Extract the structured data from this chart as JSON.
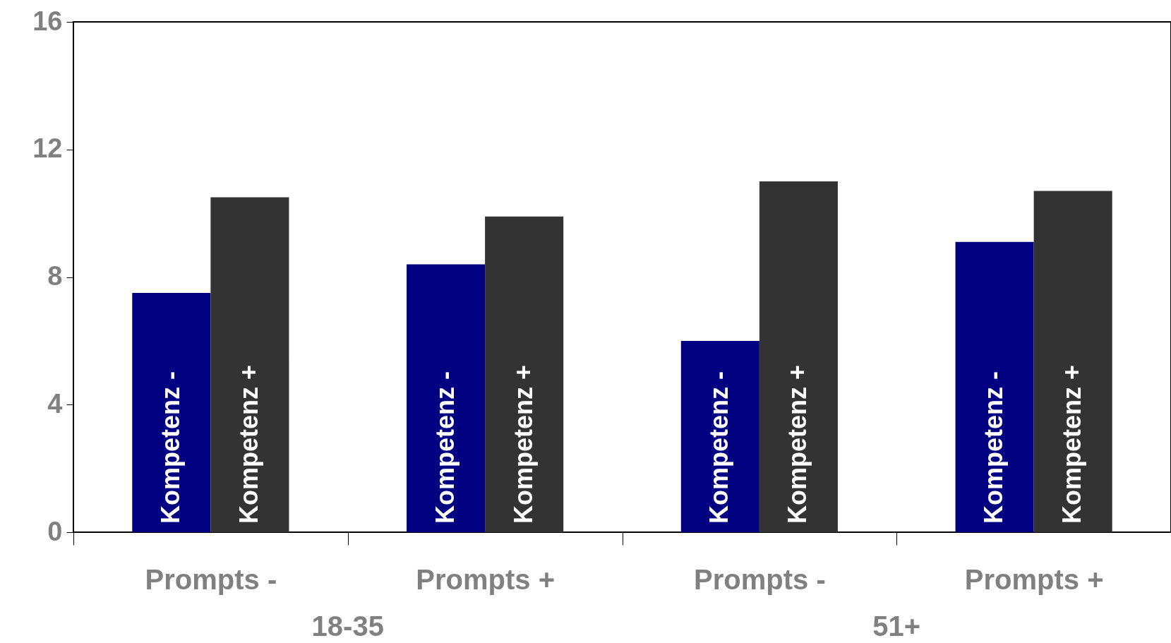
{
  "chart_data": {
    "type": "bar",
    "categories": [
      "Prompts -",
      "Prompts +",
      "Prompts -",
      "Prompts +"
    ],
    "series": [
      {
        "name": "Kompetenz -",
        "color": "#000080",
        "values": [
          7.5,
          8.4,
          6.0,
          9.1
        ]
      },
      {
        "name": "Kompetenz +",
        "color": "#333333",
        "values": [
          10.5,
          9.9,
          11.0,
          10.7
        ]
      }
    ],
    "ylim": [
      0,
      16
    ],
    "yticks": [
      0,
      4,
      8,
      12,
      16
    ],
    "grid": false,
    "legend": false,
    "annotations": [
      "18-35",
      "51+"
    ]
  }
}
